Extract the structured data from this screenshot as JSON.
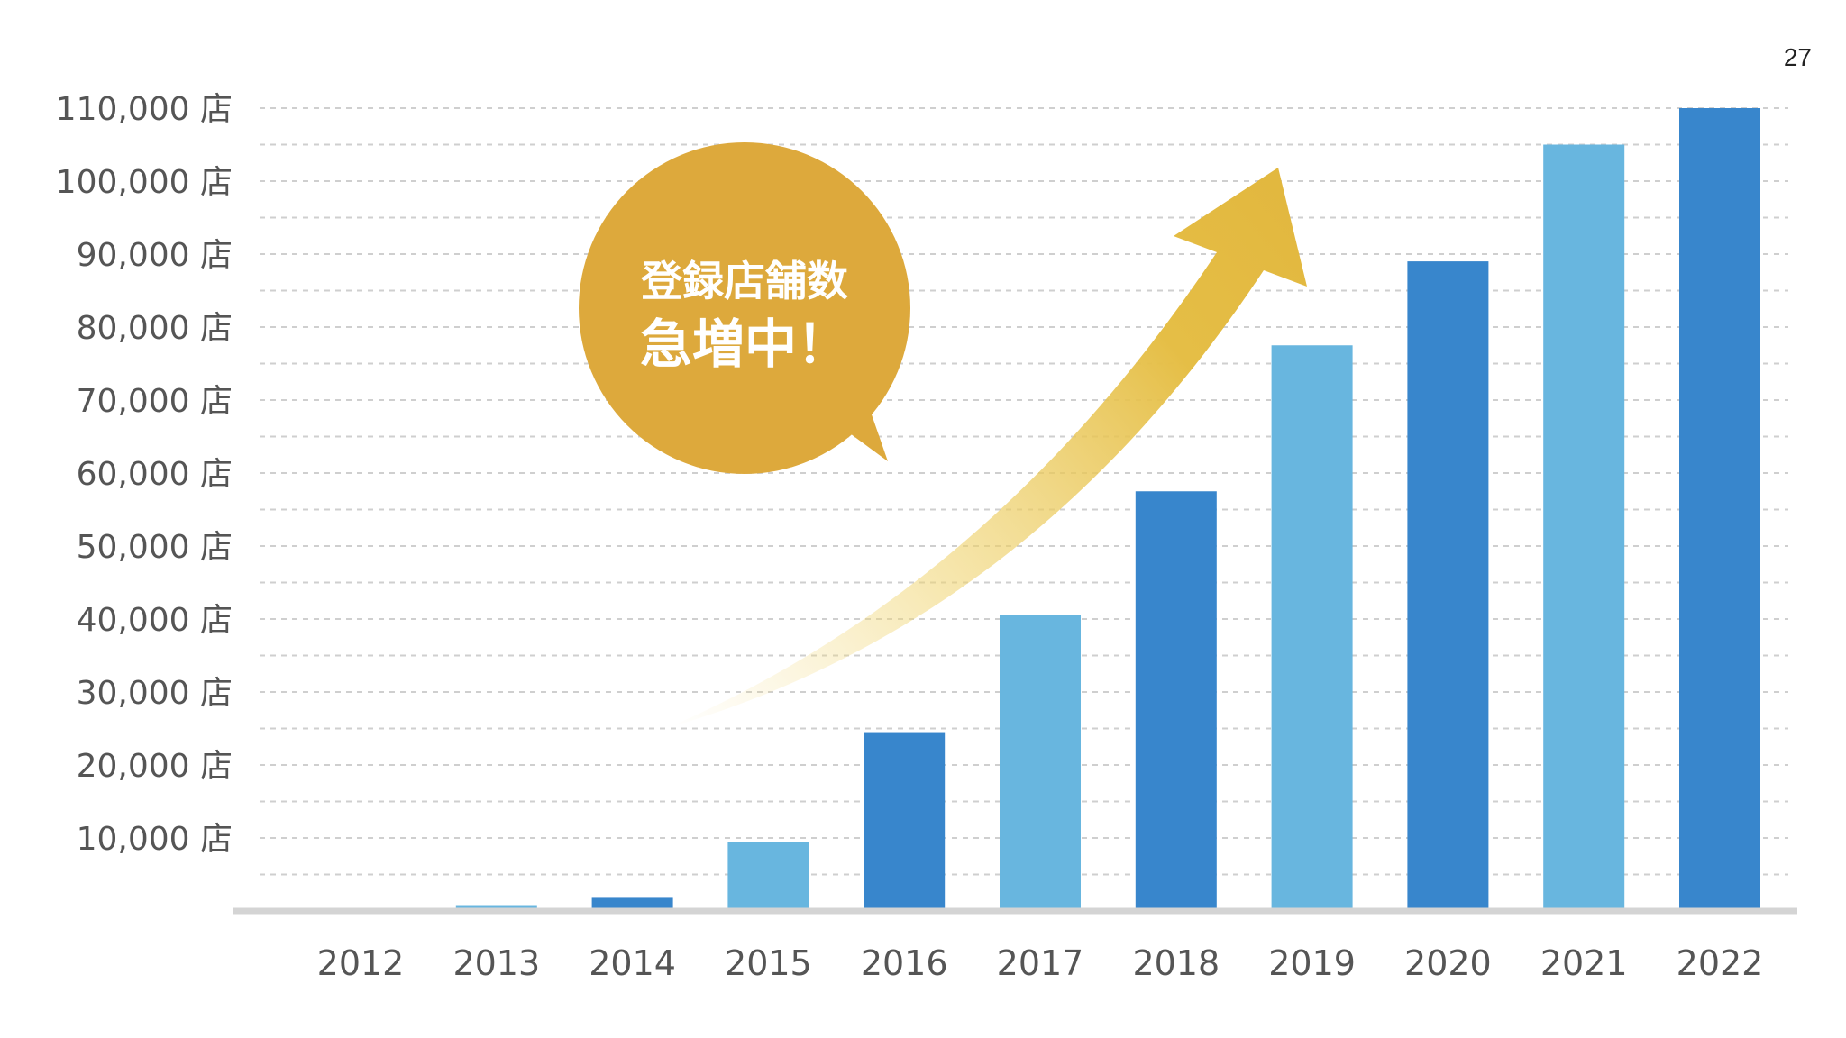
{
  "page_number": "27",
  "colors": {
    "bar_dark": "#3886CC",
    "bar_light": "#68B6DF",
    "bubble": "#DDA93C",
    "arrow": "#E2B73E",
    "grid": "#cfcfcf",
    "baseline": "#d4d4d4",
    "axis_text": "#555555"
  },
  "bubble": {
    "line1": "登録店舗数",
    "line2": "急増中！"
  },
  "chart_data": {
    "type": "bar",
    "title": "",
    "xlabel": "",
    "ylabel": "",
    "categories": [
      "2012",
      "2013",
      "2014",
      "2015",
      "2016",
      "2017",
      "2018",
      "2019",
      "2020",
      "2021",
      "2022"
    ],
    "values": [
      300,
      800,
      1800,
      9500,
      24500,
      40500,
      57500,
      77500,
      89000,
      105000,
      110000
    ],
    "bar_shades": [
      "dark",
      "light",
      "dark",
      "light",
      "dark",
      "light",
      "dark",
      "light",
      "dark",
      "light",
      "dark"
    ],
    "ylim": [
      0,
      110000
    ],
    "y_ticks": [
      10000,
      20000,
      30000,
      40000,
      50000,
      60000,
      70000,
      80000,
      90000,
      100000,
      110000
    ],
    "y_tick_labels": [
      "10,000 店",
      "20,000 店",
      "30,000 店",
      "40,000 店",
      "50,000 店",
      "60,000 店",
      "70,000 店",
      "80,000 店",
      "90,000 店",
      "100,000 店",
      "110,000 店"
    ],
    "grid": "horizontal dashed",
    "annotation": "upward arrow"
  }
}
